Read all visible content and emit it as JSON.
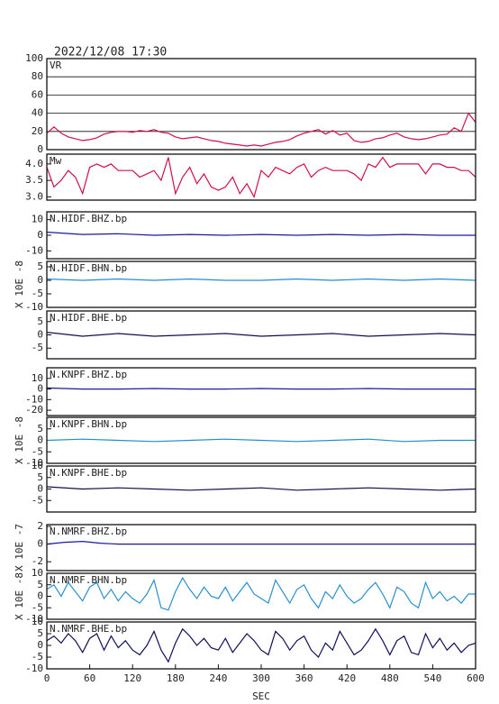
{
  "header": "2022/12/08 17:30",
  "chart_data": [
    {
      "type": "line",
      "title": "VR",
      "color": "#d0104a",
      "grid": true,
      "xlim": [
        0,
        600
      ],
      "ylim": [
        0,
        100
      ],
      "yticks": [
        0,
        20,
        40,
        60,
        80,
        100
      ],
      "x": [
        0,
        10,
        20,
        30,
        40,
        50,
        60,
        70,
        80,
        90,
        100,
        110,
        120,
        130,
        140,
        150,
        160,
        170,
        180,
        190,
        200,
        210,
        220,
        230,
        240,
        250,
        260,
        270,
        280,
        290,
        300,
        310,
        320,
        330,
        340,
        350,
        360,
        370,
        380,
        390,
        400,
        410,
        420,
        430,
        440,
        450,
        460,
        470,
        480,
        490,
        500,
        510,
        520,
        530,
        540,
        550,
        560,
        570,
        580,
        590,
        600
      ],
      "values": [
        18,
        25,
        18,
        14,
        12,
        10,
        11,
        13,
        17,
        19,
        20,
        20,
        19,
        21,
        20,
        22,
        19,
        18,
        14,
        12,
        13,
        14,
        12,
        10,
        9,
        7,
        6,
        5,
        4,
        5,
        4,
        6,
        8,
        9,
        11,
        15,
        18,
        20,
        22,
        17,
        21,
        16,
        18,
        10,
        8,
        9,
        12,
        13,
        16,
        18,
        14,
        12,
        11,
        12,
        14,
        16,
        17,
        24,
        20,
        40,
        30
      ]
    },
    {
      "type": "line",
      "title": "Mw",
      "color": "#d0104a",
      "xlim": [
        0,
        600
      ],
      "ylim": [
        2.9,
        4.3
      ],
      "yticks": [
        {
          "value": 3,
          "label": "3.0"
        },
        3.5,
        {
          "value": 4,
          "label": "4.0"
        }
      ],
      "x": [
        0,
        10,
        20,
        30,
        40,
        50,
        60,
        70,
        80,
        90,
        100,
        110,
        120,
        130,
        140,
        150,
        160,
        170,
        180,
        190,
        200,
        210,
        220,
        230,
        240,
        250,
        260,
        270,
        280,
        290,
        300,
        310,
        320,
        330,
        340,
        350,
        360,
        370,
        380,
        390,
        400,
        410,
        420,
        430,
        440,
        450,
        460,
        470,
        480,
        490,
        500,
        510,
        520,
        530,
        540,
        550,
        560,
        570,
        580,
        590,
        600
      ],
      "values": [
        3.9,
        3.3,
        3.5,
        3.8,
        3.6,
        3.1,
        3.9,
        4.0,
        3.9,
        4.0,
        3.8,
        3.8,
        3.8,
        3.6,
        3.7,
        3.8,
        3.5,
        4.2,
        3.1,
        3.6,
        3.9,
        3.4,
        3.7,
        3.3,
        3.2,
        3.3,
        3.6,
        3.1,
        3.4,
        3.0,
        3.8,
        3.6,
        3.9,
        3.8,
        3.7,
        3.9,
        4.0,
        3.6,
        3.8,
        3.9,
        3.8,
        3.8,
        3.8,
        3.7,
        3.5,
        4.0,
        3.9,
        4.2,
        3.9,
        4.0,
        4.0,
        4.0,
        4.0,
        3.7,
        4.0,
        4.0,
        3.9,
        3.9,
        3.8,
        3.8,
        3.6
      ]
    },
    {
      "type": "line",
      "title": "N.HIDF.BHZ.bp",
      "color": "#1a1aa0",
      "xlim": [
        0,
        600
      ],
      "ylim": [
        -15,
        15
      ],
      "yticks": [
        -10,
        0,
        10
      ],
      "x": [
        0,
        50,
        100,
        150,
        200,
        250,
        300,
        350,
        400,
        450,
        500,
        550,
        600
      ],
      "values": [
        2,
        0.5,
        1,
        0,
        0.5,
        0,
        0.5,
        0,
        0.5,
        0,
        0.5,
        0,
        0
      ]
    },
    {
      "type": "line",
      "title": "N.HIDF.BHN.bp",
      "color": "#1e90d0",
      "ylabel": "X 10E -8",
      "xlim": [
        0,
        600
      ],
      "ylim": [
        -10,
        7
      ],
      "yticks": [
        -10,
        -5,
        0,
        5
      ],
      "x": [
        0,
        50,
        100,
        150,
        200,
        250,
        300,
        350,
        400,
        450,
        500,
        550,
        600
      ],
      "values": [
        0.5,
        0,
        0.5,
        0,
        0.5,
        0,
        0,
        0.5,
        0,
        0.5,
        0,
        0.5,
        0
      ]
    },
    {
      "type": "line",
      "title": "N.HIDF.BHE.bp",
      "color": "#101050",
      "xlim": [
        0,
        600
      ],
      "ylim": [
        -9,
        9
      ],
      "yticks": [
        -5,
        0,
        5
      ],
      "x": [
        0,
        50,
        100,
        150,
        200,
        250,
        300,
        350,
        400,
        450,
        500,
        550,
        600
      ],
      "values": [
        1,
        -0.5,
        0.5,
        -0.5,
        0,
        0.5,
        -0.5,
        0,
        0.5,
        -0.5,
        0,
        0.5,
        0
      ]
    },
    {
      "type": "line",
      "title": "N.KNPF.BHZ.bp",
      "color": "#1a1aa0",
      "xlim": [
        0,
        600
      ],
      "ylim": [
        -25,
        20
      ],
      "yticks": [
        -20,
        -10,
        0,
        10
      ],
      "x": [
        0,
        50,
        100,
        150,
        200,
        250,
        300,
        350,
        400,
        450,
        500,
        550,
        600
      ],
      "values": [
        1,
        0,
        0,
        0.5,
        0,
        0,
        0.5,
        0,
        0,
        0.5,
        0,
        0,
        0
      ]
    },
    {
      "type": "line",
      "title": "N.KNPF.BHN.bp",
      "color": "#1e90d0",
      "ylabel": "X 10E -8",
      "xlim": [
        0,
        600
      ],
      "ylim": [
        -10,
        10
      ],
      "yticks": [
        -10,
        -5,
        0,
        5
      ],
      "x": [
        0,
        50,
        100,
        150,
        200,
        250,
        300,
        350,
        400,
        450,
        500,
        550,
        600
      ],
      "values": [
        0,
        0.5,
        0,
        -0.5,
        0,
        0.5,
        0,
        -0.5,
        0,
        0.5,
        -0.5,
        0,
        0
      ]
    },
    {
      "type": "line",
      "title": "N.KNPF.BHE.bp",
      "color": "#101050",
      "xlim": [
        0,
        600
      ],
      "ylim": [
        -10,
        10
      ],
      "yticks": [
        -5,
        0,
        5,
        10
      ],
      "x": [
        0,
        50,
        100,
        150,
        200,
        250,
        300,
        350,
        400,
        450,
        500,
        550,
        600
      ],
      "values": [
        1,
        0,
        0.5,
        0,
        -0.5,
        0,
        0.5,
        -0.5,
        0,
        0.5,
        0,
        -0.5,
        0
      ]
    },
    {
      "type": "line",
      "title": "N.NMRF.BHZ.bp",
      "color": "#1a1aa0",
      "ylabel": "X 10E -7",
      "xlim": [
        0,
        600
      ],
      "ylim": [
        -3,
        2.2
      ],
      "yticks": [
        -2,
        0,
        2
      ],
      "x": [
        0,
        25,
        50,
        75,
        100,
        150,
        200,
        250,
        300,
        350,
        400,
        450,
        500,
        550,
        600
      ],
      "values": [
        0,
        0.2,
        0.3,
        0.1,
        0,
        0,
        0,
        0,
        0,
        0,
        0,
        0,
        0,
        0,
        0
      ]
    },
    {
      "type": "line",
      "title": "N.NMRF.BHN.bp",
      "color": "#2a8fd0",
      "ylabel": "X 10E -8",
      "xlim": [
        0,
        600
      ],
      "ylim": [
        -10,
        10
      ],
      "yticks": [
        -10,
        -5,
        0,
        5,
        10
      ],
      "x": [
        0,
        10,
        20,
        30,
        40,
        50,
        60,
        70,
        80,
        90,
        100,
        110,
        120,
        130,
        140,
        150,
        160,
        170,
        180,
        190,
        200,
        210,
        220,
        230,
        240,
        250,
        260,
        270,
        280,
        290,
        300,
        310,
        320,
        330,
        340,
        350,
        360,
        370,
        380,
        390,
        400,
        410,
        420,
        430,
        440,
        450,
        460,
        470,
        480,
        490,
        500,
        510,
        520,
        530,
        540,
        550,
        560,
        570,
        580,
        590,
        600
      ],
      "values": [
        3,
        5,
        0,
        6,
        2,
        -2,
        4,
        6,
        -1,
        3,
        -2,
        2,
        -1,
        -3,
        1,
        7,
        -5,
        -6,
        2,
        8,
        3,
        -1,
        4,
        0,
        -1,
        4,
        -2,
        2,
        6,
        1,
        -1,
        -3,
        7,
        2,
        -3,
        3,
        5,
        -1,
        -5,
        2,
        -1,
        5,
        0,
        -3,
        -1,
        3,
        6,
        1,
        -5,
        4,
        2,
        -3,
        -5,
        6,
        -1,
        2,
        -2,
        0,
        -3,
        1,
        1
      ]
    },
    {
      "type": "line",
      "title": "N.NMRF.BHE.bp",
      "color": "#10105a",
      "xlim": [
        0,
        600
      ],
      "ylim": [
        -10,
        10
      ],
      "yticks": [
        -10,
        -5,
        0,
        5,
        10
      ],
      "xticks": [
        0,
        60,
        120,
        180,
        240,
        300,
        360,
        420,
        480,
        540,
        600
      ],
      "xlabel": "SEC",
      "x": [
        0,
        10,
        20,
        30,
        40,
        50,
        60,
        70,
        80,
        90,
        100,
        110,
        120,
        130,
        140,
        150,
        160,
        170,
        180,
        190,
        200,
        210,
        220,
        230,
        240,
        250,
        260,
        270,
        280,
        290,
        300,
        310,
        320,
        330,
        340,
        350,
        360,
        370,
        380,
        390,
        400,
        410,
        420,
        430,
        440,
        450,
        460,
        470,
        480,
        490,
        500,
        510,
        520,
        530,
        540,
        550,
        560,
        570,
        580,
        590,
        600
      ],
      "values": [
        2,
        4,
        1,
        5,
        2,
        -3,
        3,
        5,
        -2,
        4,
        -1,
        2,
        -2,
        -4,
        0,
        6,
        -2,
        -7,
        1,
        7,
        4,
        0,
        3,
        -1,
        -2,
        3,
        -3,
        1,
        5,
        2,
        -2,
        -4,
        6,
        3,
        -2,
        2,
        4,
        -2,
        -5,
        1,
        -2,
        6,
        1,
        -4,
        -2,
        2,
        7,
        2,
        -4,
        2,
        4,
        -3,
        -4,
        5,
        -1,
        3,
        -2,
        1,
        -3,
        0,
        1
      ]
    }
  ]
}
